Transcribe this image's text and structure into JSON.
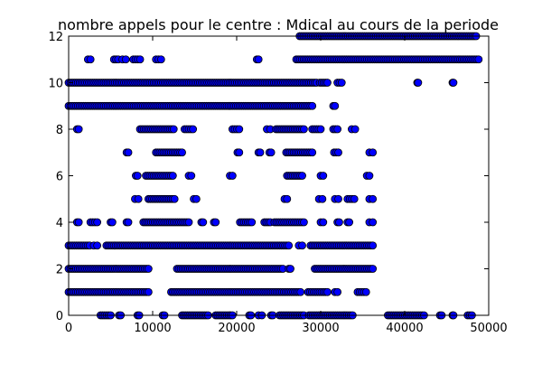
{
  "chart_data": {
    "type": "scatter",
    "title": "nombre appels pour le centre : Mdical au cours de la periode",
    "xlabel": "",
    "ylabel": "",
    "xlim": [
      0,
      50000
    ],
    "ylim": [
      0,
      12
    ],
    "x_ticks": [
      0,
      10000,
      20000,
      30000,
      40000,
      50000
    ],
    "y_ticks": [
      0,
      2,
      4,
      6,
      8,
      10,
      12
    ],
    "x_tick_labels": [
      "0",
      "10000",
      "20000",
      "30000",
      "40000",
      "50000"
    ],
    "y_tick_labels": [
      "0",
      "2",
      "4",
      "6",
      "8",
      "10",
      "12"
    ],
    "grid": false,
    "marker": "circle",
    "marker_color": "#0000ff",
    "marker_edge_color": "#000000",
    "point_bands": [
      {
        "y": 12,
        "segments": [
          [
            27500,
            48500
          ]
        ]
      },
      {
        "y": 11,
        "segments": [
          [
            2300,
            2600
          ],
          [
            5400,
            5900
          ],
          [
            6400,
            6800
          ],
          [
            7700,
            8500
          ],
          [
            10400,
            11000
          ],
          [
            22400,
            22600
          ],
          [
            27100,
            48800
          ]
        ]
      },
      {
        "y": 10,
        "segments": [
          [
            0,
            29500
          ],
          [
            29900,
            30800
          ],
          [
            32000,
            32500
          ],
          [
            41500,
            41600
          ],
          [
            45700,
            45800
          ]
        ]
      },
      {
        "y": 9,
        "segments": [
          [
            0,
            29000
          ],
          [
            31500,
            31700
          ]
        ]
      },
      {
        "y": 8,
        "segments": [
          [
            1000,
            1200
          ],
          [
            8500,
            12500
          ],
          [
            13800,
            14800
          ],
          [
            19500,
            20300
          ],
          [
            23600,
            24000
          ],
          [
            24700,
            28000
          ],
          [
            29000,
            30000
          ],
          [
            31500,
            32000
          ],
          [
            33700,
            34100
          ]
        ]
      },
      {
        "y": 7,
        "segments": [
          [
            6900,
            7100
          ],
          [
            10400,
            13500
          ],
          [
            20100,
            20300
          ],
          [
            22600,
            22800
          ],
          [
            23900,
            24100
          ],
          [
            25900,
            29000
          ],
          [
            31600,
            32100
          ],
          [
            35800,
            36200
          ]
        ]
      },
      {
        "y": 6,
        "segments": [
          [
            8000,
            8200
          ],
          [
            9200,
            12400
          ],
          [
            14300,
            14600
          ],
          [
            19200,
            19500
          ],
          [
            26000,
            27800
          ],
          [
            30000,
            30300
          ],
          [
            35500,
            35800
          ]
        ]
      },
      {
        "y": 5,
        "segments": [
          [
            7900,
            8300
          ],
          [
            9500,
            12600
          ],
          [
            14900,
            15200
          ],
          [
            25700,
            26000
          ],
          [
            29800,
            30200
          ],
          [
            31700,
            32100
          ],
          [
            33200,
            34000
          ],
          [
            35800,
            36200
          ]
        ]
      },
      {
        "y": 4,
        "segments": [
          [
            1000,
            1200
          ],
          [
            2600,
            3400
          ],
          [
            5000,
            5200
          ],
          [
            6900,
            7100
          ],
          [
            8900,
            14300
          ],
          [
            15800,
            16000
          ],
          [
            17300,
            17500
          ],
          [
            20400,
            21800
          ],
          [
            23300,
            24000
          ],
          [
            24500,
            28000
          ],
          [
            30000,
            30300
          ],
          [
            32000,
            32200
          ],
          [
            33200,
            33400
          ],
          [
            35800,
            36200
          ]
        ]
      },
      {
        "y": 3,
        "segments": [
          [
            0,
            2500
          ],
          [
            3000,
            3400
          ],
          [
            4500,
            26200
          ],
          [
            27400,
            27800
          ],
          [
            28800,
            36200
          ]
        ]
      },
      {
        "y": 2,
        "segments": [
          [
            0,
            9500
          ],
          [
            12900,
            25500
          ],
          [
            26200,
            26400
          ],
          [
            29300,
            36200
          ]
        ]
      },
      {
        "y": 1,
        "segments": [
          [
            0,
            9500
          ],
          [
            12200,
            27600
          ],
          [
            28500,
            30800
          ],
          [
            31700,
            32000
          ],
          [
            34400,
            35400
          ]
        ]
      },
      {
        "y": 0,
        "segments": [
          [
            3800,
            5000
          ],
          [
            6000,
            6200
          ],
          [
            8200,
            8400
          ],
          [
            11200,
            11400
          ],
          [
            13500,
            16600
          ],
          [
            17500,
            19500
          ],
          [
            21500,
            21700
          ],
          [
            22600,
            23000
          ],
          [
            24100,
            24300
          ],
          [
            25100,
            28000
          ],
          [
            28600,
            33800
          ],
          [
            38000,
            42300
          ],
          [
            44200,
            44400
          ],
          [
            45700,
            45800
          ],
          [
            47500,
            48000
          ]
        ]
      }
    ]
  }
}
